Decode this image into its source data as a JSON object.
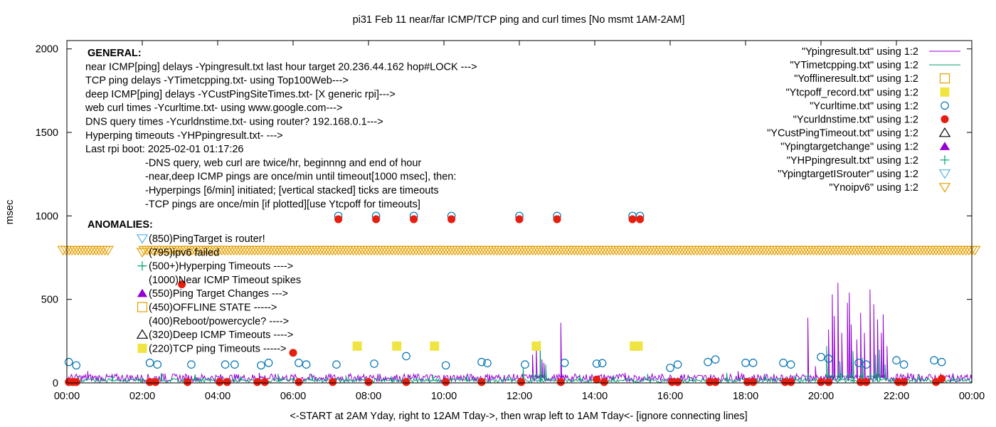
{
  "chart_data": {
    "type": "scatter",
    "title": "pi31 Feb 11  near/far ICMP/TCP ping and curl times [No msmt 1AM-2AM]",
    "xlabel": "<-START at 2AM Yday, right to 12AM Tday->, then wrap left to 1AM Tday<- [ignore connecting lines]",
    "ylabel": "msec",
    "xlim": [
      0,
      24
    ],
    "ylim": [
      0,
      2050
    ],
    "grid": false,
    "legend_position": "top-right",
    "x_ticks": [
      {
        "v": 0,
        "label": "00:00"
      },
      {
        "v": 2,
        "label": "02:00"
      },
      {
        "v": 4,
        "label": "04:00"
      },
      {
        "v": 6,
        "label": "06:00"
      },
      {
        "v": 8,
        "label": "08:00"
      },
      {
        "v": 10,
        "label": "10:00"
      },
      {
        "v": 12,
        "label": "12:00"
      },
      {
        "v": 14,
        "label": "14:00"
      },
      {
        "v": 16,
        "label": "16:00"
      },
      {
        "v": 18,
        "label": "18:00"
      },
      {
        "v": 20,
        "label": "20:00"
      },
      {
        "v": 22,
        "label": "22:00"
      },
      {
        "v": 24,
        "label": "00:00"
      }
    ],
    "y_ticks": [
      {
        "v": 0,
        "label": "0"
      },
      {
        "v": 500,
        "label": "500"
      },
      {
        "v": 1000,
        "label": "1000"
      },
      {
        "v": 1500,
        "label": "1500"
      },
      {
        "v": 2000,
        "label": "2000"
      }
    ],
    "annotations_general": [
      {
        "text": "GENERAL:",
        "bold": true,
        "indent": 0
      },
      {
        "text": "near ICMP[ping] delays -Ypingresult.txt last hour target 20.236.44.162 hop#LOCK --->",
        "indent": 0
      },
      {
        "text": "TCP ping delays -YTimetcpping.txt- using Top100Web--->",
        "indent": 0
      },
      {
        "text": "deep ICMP[ping] delays -YCustPingSiteTimes.txt- [X generic rpi]--->",
        "indent": 0
      },
      {
        "text": "web curl times -Ycurltime.txt- using www.google.com--->",
        "indent": 0
      },
      {
        "text": "DNS query times -Ycurldnstime.txt- using router? 192.168.0.1--->",
        "indent": 0
      },
      {
        "text": "Hyperping timeouts -YHPpingresult.txt- --->",
        "indent": 0
      },
      {
        "text": "Last rpi boot: 2025-02-01 01:17:26",
        "indent": 0
      },
      {
        "text": "-DNS query, web curl are twice/hr, beginnng and end of hour",
        "indent": 1
      },
      {
        "text": "-near,deep ICMP pings are once/min until timeout[1000 msec], then:",
        "indent": 1
      },
      {
        "text": "  -Hyperpings [6/min] initiated; [vertical stacked] ticks are timeouts",
        "indent": 1
      },
      {
        "text": "-TCP pings are once/min [if plotted][use Ytcpoff for timeouts]",
        "indent": 1
      }
    ],
    "anomalies_heading": "ANOMALIES:",
    "anomalies": [
      {
        "text": "(850)PingTarget is router!",
        "marker": "tri-down-open",
        "color": "#56b4e9"
      },
      {
        "text": "(795)ipv6 failed",
        "marker": "tri-down-open",
        "color": "#e69f00"
      },
      {
        "text": "(500+)Hyperping Timeouts ---->",
        "marker": "plus",
        "color": "#009e73"
      },
      {
        "text": "(1000)Near ICMP Timeout spikes",
        "marker": "none",
        "color": "#000000"
      },
      {
        "text": "(550)Ping Target Changes --->",
        "marker": "tri-up-filled",
        "color": "#9400d3"
      },
      {
        "text": "(450)OFFLINE STATE ----->",
        "marker": "square-open",
        "color": "#e69f00"
      },
      {
        "text": "(400)Reboot/powercycle? ---->",
        "marker": "none",
        "color": "#000000"
      },
      {
        "text": "(320)Deep ICMP Timeouts ---->",
        "marker": "tri-up-open",
        "color": "#000000"
      },
      {
        "text": "(220)TCP ping Timeouts ----->",
        "marker": "square-filled",
        "color": "#f0e442"
      }
    ],
    "legend": [
      {
        "label": "\"Ypingresult.txt\" using 1:2",
        "marker": "line",
        "color": "#9400d3"
      },
      {
        "label": "\"YTimetcpping.txt\" using 1:2",
        "marker": "line",
        "color": "#009e73"
      },
      {
        "label": "\"Yofflineresult.txt\" using 1:2",
        "marker": "square-open",
        "color": "#e69f00"
      },
      {
        "label": "\"Ytcpoff_record.txt\" using 1:2",
        "marker": "square-filled",
        "color": "#f0e442"
      },
      {
        "label": "\"Ycurltime.txt\" using 1:2",
        "marker": "circle-open",
        "color": "#0072b2"
      },
      {
        "label": "\"Ycurldnstime.txt\" using 1:2",
        "marker": "circle-filled",
        "color": "#e51e10"
      },
      {
        "label": "\"YCustPingTimeout.txt\" using 1:2",
        "marker": "tri-up-open",
        "color": "#000000"
      },
      {
        "label": "\"Ypingtargetchange\" using 1:2",
        "marker": "tri-up-filled",
        "color": "#9400d3"
      },
      {
        "label": "\"YHPpingresult.txt\" using 1:2",
        "marker": "plus",
        "color": "#009e73"
      },
      {
        "label": "\"YpingtargetISrouter\" using 1:2",
        "marker": "tri-down-open",
        "color": "#56b4e9"
      },
      {
        "label": "\"Ynoipv6\" using 1:2",
        "marker": "tri-down-open",
        "color": "#e69f00"
      }
    ],
    "series": [
      {
        "name": "\"Ypingresult.txt\" using 1:2",
        "type": "line",
        "color": "#9400d3",
        "baseline": 30,
        "spikes": [
          [
            0.55,
            70
          ],
          [
            2.6,
            55
          ],
          [
            5.1,
            60
          ],
          [
            8.3,
            55
          ],
          [
            11.2,
            50
          ],
          [
            12.35,
            170
          ],
          [
            12.45,
            220
          ],
          [
            12.6,
            140
          ],
          [
            12.65,
            120
          ],
          [
            13.1,
            360
          ],
          [
            14.8,
            60
          ],
          [
            16.3,
            50
          ],
          [
            17.8,
            70
          ],
          [
            19.65,
            390
          ],
          [
            19.85,
            100
          ],
          [
            20.2,
            320
          ],
          [
            20.3,
            530
          ],
          [
            20.35,
            400
          ],
          [
            20.45,
            600
          ],
          [
            20.55,
            300
          ],
          [
            20.7,
            480
          ],
          [
            20.75,
            540
          ],
          [
            20.8,
            350
          ],
          [
            20.95,
            260
          ],
          [
            21.05,
            420
          ],
          [
            21.15,
            300
          ],
          [
            21.3,
            560
          ],
          [
            21.4,
            470
          ],
          [
            21.5,
            380
          ],
          [
            21.6,
            300
          ],
          [
            21.65,
            410
          ],
          [
            21.75,
            220
          ],
          [
            22.3,
            60
          ],
          [
            23.4,
            50
          ]
        ]
      },
      {
        "name": "\"YTimetcpping.txt\" using 1:2",
        "type": "line",
        "color": "#009e73",
        "baseline": 15,
        "spikes": [
          [
            0.3,
            40
          ],
          [
            1.2,
            45
          ],
          [
            2.5,
            60
          ],
          [
            3.4,
            50
          ],
          [
            4.6,
            40
          ],
          [
            5.6,
            55
          ],
          [
            6.5,
            50
          ],
          [
            7.4,
            45
          ],
          [
            8.6,
            40
          ],
          [
            9.7,
            50
          ],
          [
            10.6,
            45
          ],
          [
            11.7,
            40
          ],
          [
            12.1,
            90
          ],
          [
            12.55,
            250
          ],
          [
            12.7,
            110
          ],
          [
            13.6,
            50
          ],
          [
            14.5,
            45
          ],
          [
            15.4,
            55
          ],
          [
            16.5,
            40
          ],
          [
            17.5,
            60
          ],
          [
            18.5,
            50
          ],
          [
            19.3,
            45
          ],
          [
            20.15,
            220
          ],
          [
            20.5,
            130
          ],
          [
            20.85,
            190
          ],
          [
            21.1,
            150
          ],
          [
            21.45,
            170
          ],
          [
            21.55,
            200
          ],
          [
            21.7,
            110
          ],
          [
            22.6,
            50
          ],
          [
            23.5,
            40
          ]
        ]
      },
      {
        "name": "\"Ycurltime.txt\" using 1:2",
        "type": "scatter",
        "marker": "circle-open",
        "color": "#0072b2",
        "points": [
          [
            0.05,
            125
          ],
          [
            0.25,
            105
          ],
          [
            2.2,
            120
          ],
          [
            2.4,
            110
          ],
          [
            3.3,
            110
          ],
          [
            4.2,
            110
          ],
          [
            4.45,
            110
          ],
          [
            5.15,
            105
          ],
          [
            5.35,
            120
          ],
          [
            6.15,
            120
          ],
          [
            6.35,
            110
          ],
          [
            7.15,
            110
          ],
          [
            8.15,
            115
          ],
          [
            9.0,
            160
          ],
          [
            10.05,
            105
          ],
          [
            11.0,
            125
          ],
          [
            11.15,
            118
          ],
          [
            12.15,
            110
          ],
          [
            13.2,
            120
          ],
          [
            14.05,
            115
          ],
          [
            14.2,
            118
          ],
          [
            16.0,
            90
          ],
          [
            16.2,
            110
          ],
          [
            17.0,
            125
          ],
          [
            17.2,
            140
          ],
          [
            18.0,
            120
          ],
          [
            18.2,
            120
          ],
          [
            19.0,
            120
          ],
          [
            19.2,
            110
          ],
          [
            20.0,
            155
          ],
          [
            20.2,
            145
          ],
          [
            21.0,
            120
          ],
          [
            21.2,
            110
          ],
          [
            22.0,
            135
          ],
          [
            22.2,
            110
          ],
          [
            23.0,
            135
          ],
          [
            23.2,
            125
          ],
          [
            7.2,
            1000
          ],
          [
            8.2,
            1000
          ],
          [
            9.2,
            1000
          ],
          [
            10.2,
            1000
          ],
          [
            12.0,
            1000
          ],
          [
            13.0,
            1000
          ],
          [
            15.0,
            1000
          ],
          [
            15.2,
            1000
          ]
        ]
      },
      {
        "name": "\"Ycurldnstime.txt\" using 1:2",
        "type": "scatter",
        "marker": "circle-filled",
        "color": "#e51e10",
        "points": [
          [
            0.05,
            5
          ],
          [
            0.15,
            5
          ],
          [
            0.25,
            5
          ],
          [
            2.2,
            5
          ],
          [
            2.35,
            5
          ],
          [
            3.2,
            5
          ],
          [
            3.05,
            590
          ],
          [
            4.05,
            5
          ],
          [
            4.25,
            5
          ],
          [
            5.05,
            5
          ],
          [
            5.25,
            5
          ],
          [
            6.0,
            180
          ],
          [
            6.15,
            5
          ],
          [
            7.05,
            5
          ],
          [
            8.0,
            5
          ],
          [
            9.0,
            5
          ],
          [
            10.05,
            5
          ],
          [
            11.0,
            5
          ],
          [
            12.05,
            5
          ],
          [
            13.1,
            5
          ],
          [
            14.05,
            20
          ],
          [
            14.25,
            5
          ],
          [
            16.05,
            5
          ],
          [
            16.2,
            5
          ],
          [
            17.05,
            5
          ],
          [
            17.2,
            5
          ],
          [
            18.05,
            5
          ],
          [
            18.2,
            5
          ],
          [
            19.05,
            5
          ],
          [
            19.2,
            5
          ],
          [
            20.0,
            5
          ],
          [
            20.2,
            5
          ],
          [
            21.05,
            5
          ],
          [
            21.2,
            5
          ],
          [
            22.05,
            5
          ],
          [
            22.2,
            5
          ],
          [
            23.05,
            5
          ],
          [
            23.2,
            25
          ],
          [
            7.2,
            980
          ],
          [
            8.2,
            980
          ],
          [
            9.2,
            980
          ],
          [
            10.2,
            980
          ],
          [
            12.0,
            980
          ],
          [
            13.0,
            980
          ],
          [
            15.0,
            980
          ],
          [
            15.2,
            980
          ]
        ]
      },
      {
        "name": "\"Ytcpoff_record.txt\" using 1:2",
        "type": "scatter",
        "marker": "square-filled",
        "color": "#f0e442",
        "points": [
          [
            7.7,
            220
          ],
          [
            8.75,
            220
          ],
          [
            9.75,
            220
          ],
          [
            12.45,
            220
          ],
          [
            15.05,
            220
          ],
          [
            15.15,
            220
          ]
        ]
      },
      {
        "name": "\"Ynoipv6\" using 1:2",
        "type": "band",
        "marker": "tri-down-open",
        "color": "#e69f00",
        "y": 795,
        "ranges": [
          [
            -0.1,
            1.1
          ],
          [
            2.05,
            24.1
          ]
        ]
      },
      {
        "name": "\"YHPpingresult.txt\" using 1:2",
        "type": "ticks",
        "color": "#009e73",
        "x_values": [
          12.35,
          12.45,
          12.55,
          12.65,
          19.65,
          20.2,
          20.3,
          20.45,
          20.55,
          20.7,
          20.8,
          21.05,
          21.3,
          21.4,
          21.5
        ]
      }
    ]
  }
}
